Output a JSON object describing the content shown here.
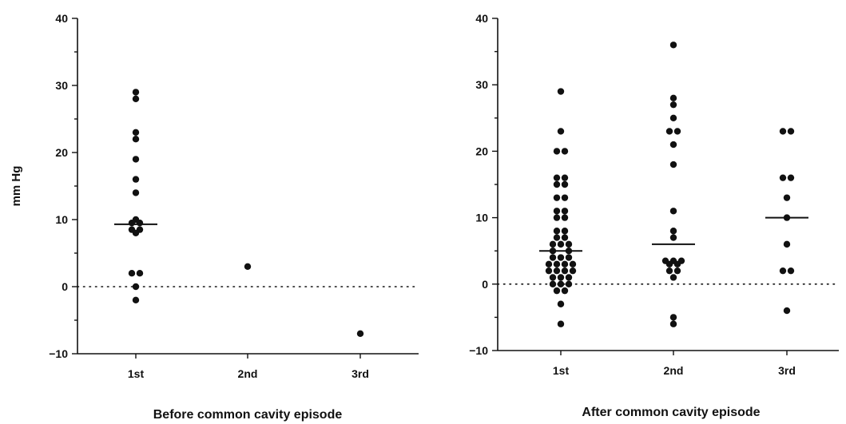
{
  "chart_data": [
    {
      "type": "scatter",
      "title": "Before common cavity episode",
      "xlabel": "",
      "ylabel": "mm Hg",
      "categories": [
        "1st",
        "2nd",
        "3rd"
      ],
      "ylim": [
        -10,
        40
      ],
      "yticks": [
        -10,
        0,
        10,
        20,
        30,
        40
      ],
      "ytick_labels": [
        "−10",
        "0",
        "10",
        "20",
        "30",
        "40"
      ],
      "reference_line": 0,
      "points": [
        {
          "x": "1st",
          "y": 29
        },
        {
          "x": "1st",
          "y": 28
        },
        {
          "x": "1st",
          "y": 23
        },
        {
          "x": "1st",
          "y": 22
        },
        {
          "x": "1st",
          "y": 19
        },
        {
          "x": "1st",
          "y": 16
        },
        {
          "x": "1st",
          "y": 14
        },
        {
          "x": "1st",
          "y": 10
        },
        {
          "x": "1st",
          "y": 9.5,
          "offset": -1
        },
        {
          "x": "1st",
          "y": 9.5,
          "offset": 1
        },
        {
          "x": "1st",
          "y": 8.5,
          "offset": -1
        },
        {
          "x": "1st",
          "y": 8.5,
          "offset": 1
        },
        {
          "x": "1st",
          "y": 8
        },
        {
          "x": "1st",
          "y": 2,
          "offset": -1
        },
        {
          "x": "1st",
          "y": 2,
          "offset": 1
        },
        {
          "x": "1st",
          "y": 0
        },
        {
          "x": "1st",
          "y": -2
        },
        {
          "x": "2nd",
          "y": 3
        },
        {
          "x": "3rd",
          "y": -7
        }
      ],
      "medians": [
        {
          "x": "1st",
          "y": 9.3
        }
      ]
    },
    {
      "type": "scatter",
      "title": "After common cavity episode",
      "xlabel": "",
      "ylabel": "",
      "categories": [
        "1st",
        "2nd",
        "3rd"
      ],
      "ylim": [
        -10,
        40
      ],
      "yticks": [
        -10,
        0,
        10,
        20,
        30,
        40
      ],
      "ytick_labels": [
        "−10",
        "0",
        "10",
        "20",
        "30",
        "40"
      ],
      "reference_line": 0,
      "points": [
        {
          "x": "1st",
          "y": 29
        },
        {
          "x": "1st",
          "y": 23
        },
        {
          "x": "1st",
          "y": 20,
          "offset": -1
        },
        {
          "x": "1st",
          "y": 20,
          "offset": 1
        },
        {
          "x": "1st",
          "y": 16,
          "offset": -1
        },
        {
          "x": "1st",
          "y": 16,
          "offset": 1
        },
        {
          "x": "1st",
          "y": 15,
          "offset": -1
        },
        {
          "x": "1st",
          "y": 15,
          "offset": 1
        },
        {
          "x": "1st",
          "y": 13,
          "offset": -1
        },
        {
          "x": "1st",
          "y": 13,
          "offset": 1
        },
        {
          "x": "1st",
          "y": 11,
          "offset": -1
        },
        {
          "x": "1st",
          "y": 11,
          "offset": 1
        },
        {
          "x": "1st",
          "y": 10,
          "offset": -1
        },
        {
          "x": "1st",
          "y": 10,
          "offset": 1
        },
        {
          "x": "1st",
          "y": 8,
          "offset": -1
        },
        {
          "x": "1st",
          "y": 8,
          "offset": 1
        },
        {
          "x": "1st",
          "y": 7,
          "offset": -1
        },
        {
          "x": "1st",
          "y": 7,
          "offset": 1
        },
        {
          "x": "1st",
          "y": 6,
          "offset": -2
        },
        {
          "x": "1st",
          "y": 6,
          "offset": 0
        },
        {
          "x": "1st",
          "y": 6,
          "offset": 2
        },
        {
          "x": "1st",
          "y": 5,
          "offset": -2
        },
        {
          "x": "1st",
          "y": 5,
          "offset": 2
        },
        {
          "x": "1st",
          "y": 4,
          "offset": -2
        },
        {
          "x": "1st",
          "y": 4,
          "offset": 0
        },
        {
          "x": "1st",
          "y": 4,
          "offset": 2
        },
        {
          "x": "1st",
          "y": 3,
          "offset": -3
        },
        {
          "x": "1st",
          "y": 3,
          "offset": -1
        },
        {
          "x": "1st",
          "y": 3,
          "offset": 1
        },
        {
          "x": "1st",
          "y": 3,
          "offset": 3
        },
        {
          "x": "1st",
          "y": 2,
          "offset": -3
        },
        {
          "x": "1st",
          "y": 2,
          "offset": -1
        },
        {
          "x": "1st",
          "y": 2,
          "offset": 1
        },
        {
          "x": "1st",
          "y": 2,
          "offset": 3
        },
        {
          "x": "1st",
          "y": 1,
          "offset": -2
        },
        {
          "x": "1st",
          "y": 1,
          "offset": 0
        },
        {
          "x": "1st",
          "y": 1,
          "offset": 2
        },
        {
          "x": "1st",
          "y": 0,
          "offset": -2
        },
        {
          "x": "1st",
          "y": 0,
          "offset": 0
        },
        {
          "x": "1st",
          "y": 0,
          "offset": 2
        },
        {
          "x": "1st",
          "y": -1,
          "offset": -1
        },
        {
          "x": "1st",
          "y": -1,
          "offset": 1
        },
        {
          "x": "1st",
          "y": -3
        },
        {
          "x": "1st",
          "y": -6
        },
        {
          "x": "2nd",
          "y": 36
        },
        {
          "x": "2nd",
          "y": 28
        },
        {
          "x": "2nd",
          "y": 27
        },
        {
          "x": "2nd",
          "y": 25
        },
        {
          "x": "2nd",
          "y": 23,
          "offset": -1
        },
        {
          "x": "2nd",
          "y": 23,
          "offset": 1
        },
        {
          "x": "2nd",
          "y": 21
        },
        {
          "x": "2nd",
          "y": 18
        },
        {
          "x": "2nd",
          "y": 11
        },
        {
          "x": "2nd",
          "y": 8
        },
        {
          "x": "2nd",
          "y": 7
        },
        {
          "x": "2nd",
          "y": 3.5,
          "offset": -2
        },
        {
          "x": "2nd",
          "y": 3.5,
          "offset": 0
        },
        {
          "x": "2nd",
          "y": 3.5,
          "offset": 2
        },
        {
          "x": "2nd",
          "y": 3,
          "offset": -1
        },
        {
          "x": "2nd",
          "y": 3,
          "offset": 1
        },
        {
          "x": "2nd",
          "y": 2,
          "offset": -1
        },
        {
          "x": "2nd",
          "y": 2,
          "offset": 1
        },
        {
          "x": "2nd",
          "y": 1
        },
        {
          "x": "2nd",
          "y": -5
        },
        {
          "x": "2nd",
          "y": -6
        },
        {
          "x": "3rd",
          "y": 23,
          "offset": -1
        },
        {
          "x": "3rd",
          "y": 23,
          "offset": 1
        },
        {
          "x": "3rd",
          "y": 16,
          "offset": -1
        },
        {
          "x": "3rd",
          "y": 16,
          "offset": 1
        },
        {
          "x": "3rd",
          "y": 13
        },
        {
          "x": "3rd",
          "y": 10
        },
        {
          "x": "3rd",
          "y": 6
        },
        {
          "x": "3rd",
          "y": 2,
          "offset": -1
        },
        {
          "x": "3rd",
          "y": 2,
          "offset": 1
        },
        {
          "x": "3rd",
          "y": -4
        }
      ],
      "medians": [
        {
          "x": "1st",
          "y": 5
        },
        {
          "x": "2nd",
          "y": 6
        },
        {
          "x": "3rd",
          "y": 10
        }
      ]
    }
  ]
}
